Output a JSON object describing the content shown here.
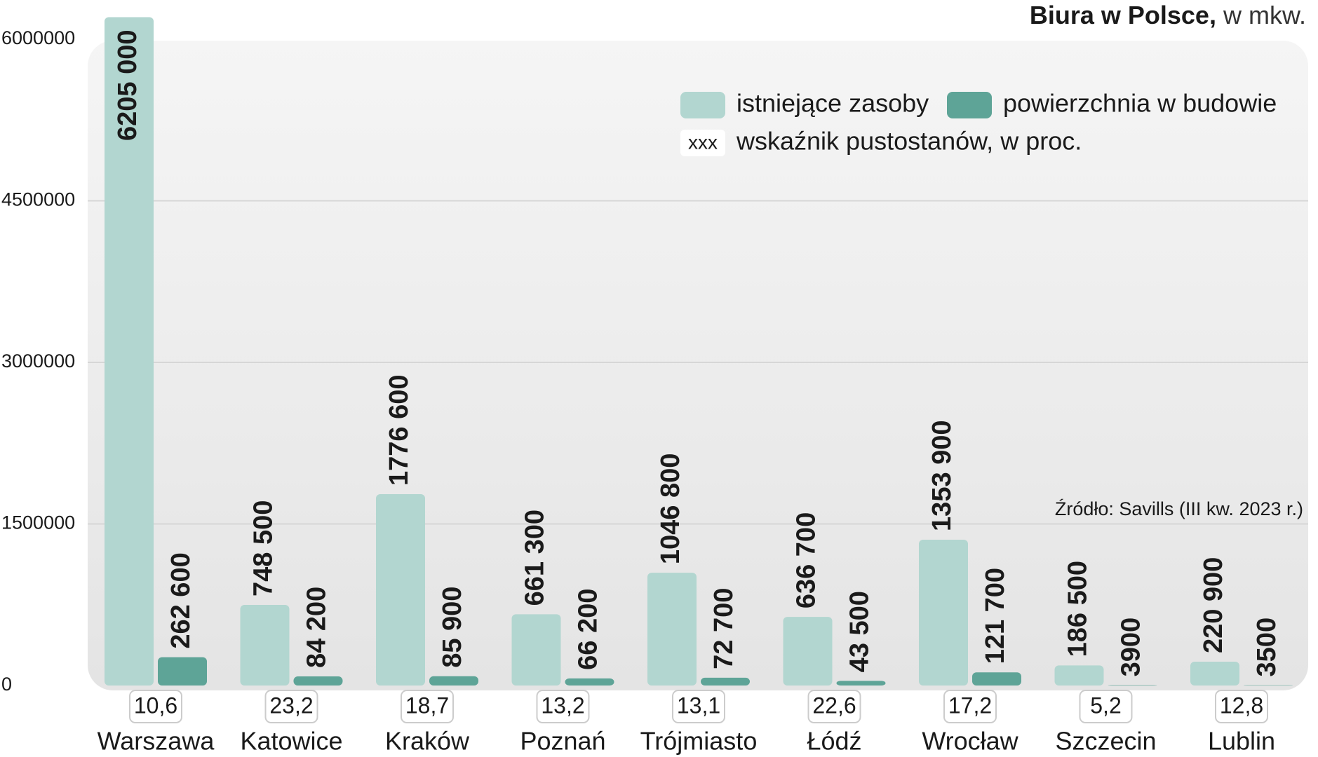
{
  "chart_data": {
    "type": "bar",
    "title": "Biura w Polsce,",
    "subtitle": "w mkw.",
    "source": "Źródło: Savills (III kw. 2023 r.)",
    "categories": [
      "Warszawa",
      "Katowice",
      "Kraków",
      "Poznań",
      "Trójmiasto",
      "Łódź",
      "Wrocław",
      "Szczecin",
      "Lublin"
    ],
    "series": [
      {
        "name": "istniejące zasoby",
        "color": "#b2d6d0",
        "values": [
          6205000,
          748500,
          1776600,
          661300,
          1046800,
          636700,
          1353900,
          186500,
          220900
        ],
        "value_labels": [
          "6205 000",
          "748 500",
          "1776 600",
          "661 300",
          "1046 800",
          "636 700",
          "1353 900",
          "186 500",
          "220 900"
        ]
      },
      {
        "name": "powierzchnia w budowie",
        "color": "#5ea497",
        "values": [
          262600,
          84200,
          85900,
          66200,
          72700,
          43500,
          121700,
          3900,
          3500
        ],
        "value_labels": [
          "262 600",
          "84 200",
          "85 900",
          "66 200",
          "72 700",
          "43 500",
          "121 700",
          "3900",
          "3500"
        ]
      }
    ],
    "vacancy": {
      "name": "wskaźnik pustostanów, w proc.",
      "sample": "xxx",
      "values": [
        10.6,
        23.2,
        18.7,
        13.2,
        13.1,
        22.6,
        17.2,
        5.2,
        12.8
      ],
      "value_labels": [
        "10,6",
        "23,2",
        "18,7",
        "13,2",
        "13,1",
        "22,6",
        "17,2",
        "5,2",
        "12,8"
      ]
    },
    "ylim": [
      0,
      6000000
    ],
    "yticks": [
      0,
      1500000,
      3000000,
      4500000,
      6000000
    ],
    "grid": true
  }
}
